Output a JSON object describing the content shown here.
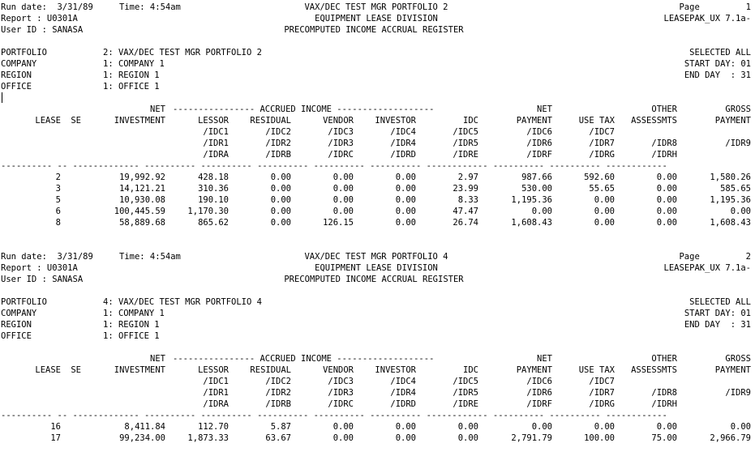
{
  "columns": [
    {
      "key": "lease",
      "right": 74
    },
    {
      "key": "se",
      "right": 99
    },
    {
      "key": "investment",
      "right": 203
    },
    {
      "key": "lessor",
      "right": 281
    },
    {
      "key": "residual",
      "right": 358
    },
    {
      "key": "vendor",
      "right": 435
    },
    {
      "key": "investor",
      "right": 512
    },
    {
      "key": "idc",
      "right": 589
    },
    {
      "key": "net_payment",
      "right": 680
    },
    {
      "key": "use_tax",
      "right": 757
    },
    {
      "key": "other",
      "right": 834
    },
    {
      "key": "gross",
      "right": 925
    }
  ],
  "header_lines": [
    [
      "",
      "",
      "NET",
      "---------------- ACCRUED INCOME -------------------",
      "",
      "",
      "",
      "",
      "NET",
      "",
      "OTHER",
      "GROSS"
    ],
    [
      "LEASE",
      "SE",
      "INVESTMENT",
      "LESSOR",
      "RESIDUAL",
      "VENDOR",
      "INVESTOR",
      "IDC",
      "PAYMENT",
      "USE TAX",
      "ASSESSMTS",
      "PAYMENT"
    ],
    [
      "",
      "",
      "",
      "/IDC1",
      "/IDC2",
      "/IDC3",
      "/IDC4",
      "/IDC5",
      "/IDC6",
      "/IDC7",
      "",
      ""
    ],
    [
      "",
      "",
      "",
      "/IDR1",
      "/IDR2",
      "/IDR3",
      "/IDR4",
      "/IDR5",
      "/IDR6",
      "/IDR7",
      "/IDR8",
      "/IDR9"
    ],
    [
      "",
      "",
      "",
      "/IDRA",
      "/IDRB",
      "/IDRC",
      "/IDRD",
      "/IDRE",
      "/IDRF",
      "/IDRG",
      "/IDRH",
      ""
    ]
  ],
  "separator": "---------- -- ------------- ---------- ---------- ---------- ---------- ---------- ------------ ---------- ---------- ------------",
  "sections": [
    {
      "run_date": "Run date:  3/31/89",
      "time": "Time: 4:54am",
      "portfolio_title": "VAX/DEC TEST MGR PORTFOLIO 2",
      "division": "EQUIPMENT LEASE DIVISION",
      "register": "PRECOMPUTED INCOME ACCRUAL REGISTER",
      "page": "Page         1",
      "report": "Report : U0301A",
      "product": "LEASEPAK_UX 7.1a-",
      "user": "User ID : SANASA",
      "criteria": [
        {
          "label": "PORTFOLIO",
          "value": "2: VAX/DEC TEST MGR PORTFOLIO 2",
          "right": "SELECTED ALL"
        },
        {
          "label": "COMPANY",
          "value": "1: COMPANY 1",
          "right": "START DAY: 01"
        },
        {
          "label": "REGION",
          "value": "1: REGION 1",
          "right": "END DAY  : 31"
        },
        {
          "label": "OFFICE",
          "value": "1: OFFICE 1",
          "right": ""
        }
      ],
      "rows": [
        [
          "2",
          "",
          "19,992.92",
          "428.18",
          "0.00",
          "0.00",
          "0.00",
          "2.97",
          "987.66",
          "592.60",
          "0.00",
          "1,580.26"
        ],
        [
          "3",
          "",
          "14,121.21",
          "310.36",
          "0.00",
          "0.00",
          "0.00",
          "23.99",
          "530.00",
          "55.65",
          "0.00",
          "585.65"
        ],
        [
          "5",
          "",
          "10,930.08",
          "190.10",
          "0.00",
          "0.00",
          "0.00",
          "8.33",
          "1,195.36",
          "0.00",
          "0.00",
          "1,195.36"
        ],
        [
          "6",
          "",
          "100,445.59",
          "1,170.30",
          "0.00",
          "0.00",
          "0.00",
          "47.47",
          "0.00",
          "0.00",
          "0.00",
          "0.00"
        ],
        [
          "8",
          "",
          "58,889.68",
          "865.62",
          "0.00",
          "126.15",
          "0.00",
          "26.74",
          "1,608.43",
          "0.00",
          "0.00",
          "1,608.43"
        ]
      ]
    },
    {
      "run_date": "Run date:  3/31/89",
      "time": "Time: 4:54am",
      "portfolio_title": "VAX/DEC TEST MGR PORTFOLIO 4",
      "division": "EQUIPMENT LEASE DIVISION",
      "register": "PRECOMPUTED INCOME ACCRUAL REGISTER",
      "page": "Page         2",
      "report": "Report : U0301A",
      "product": "LEASEPAK_UX 7.1a-",
      "user": "User ID : SANASA",
      "criteria": [
        {
          "label": "PORTFOLIO",
          "value": "4: VAX/DEC TEST MGR PORTFOLIO 4",
          "right": "SELECTED ALL"
        },
        {
          "label": "COMPANY",
          "value": "1: COMPANY 1",
          "right": "START DAY: 01"
        },
        {
          "label": "REGION",
          "value": "1: REGION 1",
          "right": "END DAY  : 31"
        },
        {
          "label": "OFFICE",
          "value": "1: OFFICE 1",
          "right": ""
        }
      ],
      "rows": [
        [
          "16",
          "",
          "8,411.84",
          "112.70",
          "5.87",
          "0.00",
          "0.00",
          "0.00",
          "0.00",
          "0.00",
          "0.00",
          "0.00"
        ],
        [
          "17",
          "",
          "99,234.00",
          "1,873.33",
          "63.67",
          "0.00",
          "0.00",
          "0.00",
          "2,791.79",
          "100.00",
          "75.00",
          "2,966.79"
        ]
      ]
    }
  ]
}
